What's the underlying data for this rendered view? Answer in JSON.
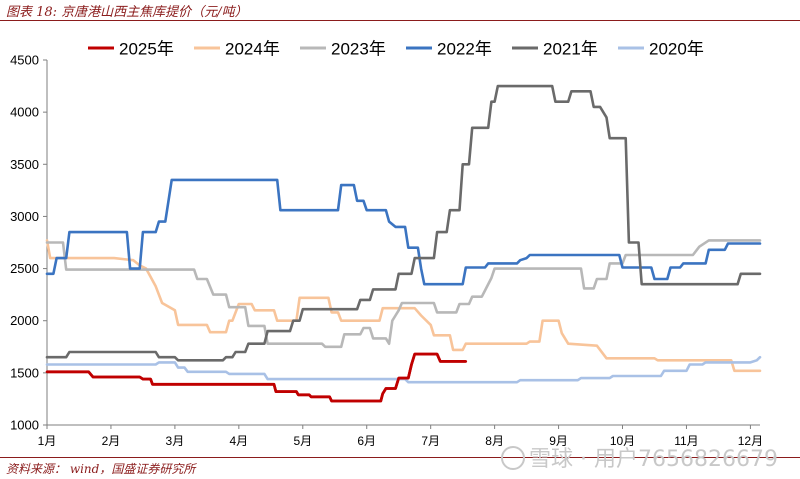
{
  "figure": {
    "title": "图表 18:  京唐港山西主焦库提价（元/吨）",
    "source": "资料来源：  wind，国盛证券研究所"
  },
  "watermark": {
    "text": "雪球 · 用户7656826679",
    "icon": "snowball-logo-icon"
  },
  "colors": {
    "2025年": "#c00000",
    "2024年": "#f8c49a",
    "2023年": "#b8b8b8",
    "2022年": "#3b74c1",
    "2021年": "#6a6a6a",
    "2020年": "#a9c1e6"
  },
  "chart_data": {
    "type": "line",
    "title": "",
    "xlabel": "",
    "ylabel": "",
    "x_unit": "month (1 = Jan 1, 13 = Dec 31)",
    "x_ticks": [
      1,
      2,
      3,
      4,
      5,
      6,
      7,
      8,
      9,
      10,
      11,
      12
    ],
    "x_tick_labels": [
      "1月",
      "2月",
      "3月",
      "4月",
      "5月",
      "6月",
      "7月",
      "8月",
      "9月",
      "10月",
      "11月",
      "12月"
    ],
    "xlim": [
      1,
      12.15
    ],
    "ylim": [
      1000,
      4500
    ],
    "y_ticks": [
      1000,
      1500,
      2000,
      2500,
      3000,
      3500,
      4000,
      4500
    ],
    "legend_position": "top",
    "grid": false,
    "series": [
      {
        "name": "2025年",
        "points": [
          [
            1,
            1510
          ],
          [
            1.65,
            1510
          ],
          [
            1.72,
            1460
          ],
          [
            2.45,
            1460
          ],
          [
            2.5,
            1440
          ],
          [
            2.62,
            1440
          ],
          [
            2.65,
            1390
          ],
          [
            4.55,
            1390
          ],
          [
            4.58,
            1320
          ],
          [
            4.9,
            1320
          ],
          [
            4.93,
            1290
          ],
          [
            5.1,
            1290
          ],
          [
            5.13,
            1270
          ],
          [
            5.42,
            1270
          ],
          [
            5.45,
            1230
          ],
          [
            6.22,
            1230
          ],
          [
            6.25,
            1300
          ],
          [
            6.3,
            1350
          ],
          [
            6.45,
            1350
          ],
          [
            6.5,
            1450
          ],
          [
            6.65,
            1450
          ],
          [
            6.7,
            1580
          ],
          [
            6.75,
            1680
          ],
          [
            7.1,
            1680
          ],
          [
            7.15,
            1610
          ],
          [
            7.55,
            1610
          ]
        ]
      },
      {
        "name": "2024年",
        "points": [
          [
            1,
            2770
          ],
          [
            1.05,
            2600
          ],
          [
            2.05,
            2600
          ],
          [
            2.35,
            2580
          ],
          [
            2.45,
            2530
          ],
          [
            2.55,
            2500
          ],
          [
            2.7,
            2330
          ],
          [
            2.8,
            2170
          ],
          [
            3.0,
            2100
          ],
          [
            3.05,
            1960
          ],
          [
            3.5,
            1960
          ],
          [
            3.55,
            1890
          ],
          [
            3.8,
            1890
          ],
          [
            3.85,
            2000
          ],
          [
            3.9,
            2000
          ],
          [
            4.0,
            2160
          ],
          [
            4.2,
            2160
          ],
          [
            4.25,
            2100
          ],
          [
            4.55,
            2100
          ],
          [
            4.6,
            2000
          ],
          [
            4.9,
            2000
          ],
          [
            4.95,
            2220
          ],
          [
            5.4,
            2220
          ],
          [
            5.45,
            2080
          ],
          [
            5.55,
            2080
          ],
          [
            5.6,
            2000
          ],
          [
            6.2,
            2000
          ],
          [
            6.25,
            2120
          ],
          [
            6.75,
            2120
          ],
          [
            6.85,
            2050
          ],
          [
            7.0,
            1960
          ],
          [
            7.05,
            1860
          ],
          [
            7.3,
            1860
          ],
          [
            7.35,
            1720
          ],
          [
            7.5,
            1720
          ],
          [
            7.55,
            1780
          ],
          [
            8.5,
            1780
          ],
          [
            8.55,
            1800
          ],
          [
            8.7,
            1800
          ],
          [
            8.75,
            2000
          ],
          [
            9.0,
            2000
          ],
          [
            9.05,
            1880
          ],
          [
            9.15,
            1780
          ],
          [
            9.6,
            1760
          ],
          [
            9.75,
            1640
          ],
          [
            10.5,
            1640
          ],
          [
            10.55,
            1620
          ],
          [
            11.7,
            1620
          ],
          [
            11.75,
            1520
          ],
          [
            12.15,
            1520
          ]
        ]
      },
      {
        "name": "2023年",
        "points": [
          [
            1,
            2750
          ],
          [
            1.25,
            2750
          ],
          [
            1.3,
            2490
          ],
          [
            3.3,
            2490
          ],
          [
            3.35,
            2400
          ],
          [
            3.5,
            2400
          ],
          [
            3.6,
            2250
          ],
          [
            3.8,
            2250
          ],
          [
            3.85,
            2130
          ],
          [
            4.1,
            2130
          ],
          [
            4.15,
            1950
          ],
          [
            4.4,
            1950
          ],
          [
            4.45,
            1780
          ],
          [
            5.3,
            1780
          ],
          [
            5.35,
            1750
          ],
          [
            5.6,
            1750
          ],
          [
            5.65,
            1870
          ],
          [
            5.9,
            1870
          ],
          [
            5.95,
            1930
          ],
          [
            6.05,
            1930
          ],
          [
            6.1,
            1830
          ],
          [
            6.3,
            1830
          ],
          [
            6.35,
            1780
          ],
          [
            6.4,
            2000
          ],
          [
            6.45,
            2050
          ],
          [
            6.5,
            2100
          ],
          [
            6.55,
            2170
          ],
          [
            7.05,
            2170
          ],
          [
            7.1,
            2080
          ],
          [
            7.4,
            2080
          ],
          [
            7.45,
            2160
          ],
          [
            7.6,
            2160
          ],
          [
            7.65,
            2230
          ],
          [
            7.8,
            2230
          ],
          [
            7.85,
            2290
          ],
          [
            7.95,
            2410
          ],
          [
            8.0,
            2500
          ],
          [
            9.35,
            2500
          ],
          [
            9.4,
            2310
          ],
          [
            9.55,
            2310
          ],
          [
            9.6,
            2400
          ],
          [
            9.75,
            2400
          ],
          [
            9.8,
            2550
          ],
          [
            10.0,
            2550
          ],
          [
            10.05,
            2630
          ],
          [
            11.1,
            2630
          ],
          [
            11.2,
            2710
          ],
          [
            11.35,
            2770
          ],
          [
            12.15,
            2770
          ]
        ]
      },
      {
        "name": "2022年",
        "points": [
          [
            1,
            2450
          ],
          [
            1.1,
            2450
          ],
          [
            1.15,
            2600
          ],
          [
            1.3,
            2600
          ],
          [
            1.35,
            2850
          ],
          [
            2.25,
            2850
          ],
          [
            2.3,
            2500
          ],
          [
            2.45,
            2500
          ],
          [
            2.5,
            2850
          ],
          [
            2.7,
            2850
          ],
          [
            2.75,
            2950
          ],
          [
            2.85,
            2950
          ],
          [
            2.9,
            3150
          ],
          [
            2.95,
            3350
          ],
          [
            4.6,
            3350
          ],
          [
            4.65,
            3060
          ],
          [
            5.55,
            3060
          ],
          [
            5.6,
            3300
          ],
          [
            5.8,
            3300
          ],
          [
            5.85,
            3150
          ],
          [
            5.95,
            3150
          ],
          [
            6.0,
            3060
          ],
          [
            6.3,
            3060
          ],
          [
            6.35,
            2950
          ],
          [
            6.45,
            2900
          ],
          [
            6.6,
            2900
          ],
          [
            6.65,
            2700
          ],
          [
            6.8,
            2700
          ],
          [
            6.85,
            2500
          ],
          [
            6.9,
            2350
          ],
          [
            7.5,
            2350
          ],
          [
            7.55,
            2510
          ],
          [
            7.85,
            2510
          ],
          [
            7.9,
            2550
          ],
          [
            8.35,
            2550
          ],
          [
            8.4,
            2580
          ],
          [
            8.5,
            2600
          ],
          [
            8.55,
            2630
          ],
          [
            9.95,
            2630
          ],
          [
            10.0,
            2510
          ],
          [
            10.45,
            2510
          ],
          [
            10.5,
            2400
          ],
          [
            10.7,
            2400
          ],
          [
            10.75,
            2510
          ],
          [
            10.9,
            2510
          ],
          [
            10.95,
            2550
          ],
          [
            11.3,
            2550
          ],
          [
            11.35,
            2680
          ],
          [
            11.6,
            2680
          ],
          [
            11.65,
            2740
          ],
          [
            12.15,
            2740
          ]
        ]
      },
      {
        "name": "2021年",
        "points": [
          [
            1,
            1650
          ],
          [
            1.3,
            1650
          ],
          [
            1.35,
            1700
          ],
          [
            2.7,
            1700
          ],
          [
            2.75,
            1650
          ],
          [
            3.0,
            1650
          ],
          [
            3.05,
            1620
          ],
          [
            3.75,
            1620
          ],
          [
            3.8,
            1650
          ],
          [
            3.9,
            1650
          ],
          [
            3.95,
            1700
          ],
          [
            4.1,
            1700
          ],
          [
            4.15,
            1780
          ],
          [
            4.4,
            1780
          ],
          [
            4.45,
            1900
          ],
          [
            4.8,
            1900
          ],
          [
            4.85,
            2000
          ],
          [
            4.95,
            2000
          ],
          [
            5.0,
            2110
          ],
          [
            5.85,
            2110
          ],
          [
            5.9,
            2200
          ],
          [
            6.05,
            2200
          ],
          [
            6.1,
            2300
          ],
          [
            6.45,
            2300
          ],
          [
            6.5,
            2450
          ],
          [
            6.7,
            2450
          ],
          [
            6.75,
            2600
          ],
          [
            7.05,
            2600
          ],
          [
            7.1,
            2850
          ],
          [
            7.25,
            2850
          ],
          [
            7.3,
            3060
          ],
          [
            7.45,
            3060
          ],
          [
            7.5,
            3500
          ],
          [
            7.6,
            3500
          ],
          [
            7.65,
            3850
          ],
          [
            7.9,
            3850
          ],
          [
            7.95,
            4100
          ],
          [
            8.0,
            4100
          ],
          [
            8.05,
            4250
          ],
          [
            8.9,
            4250
          ],
          [
            8.95,
            4100
          ],
          [
            9.15,
            4100
          ],
          [
            9.2,
            4200
          ],
          [
            9.5,
            4200
          ],
          [
            9.55,
            4050
          ],
          [
            9.65,
            4050
          ],
          [
            9.75,
            3950
          ],
          [
            9.8,
            3750
          ],
          [
            10.05,
            3750
          ],
          [
            10.1,
            2750
          ],
          [
            10.25,
            2750
          ],
          [
            10.3,
            2350
          ],
          [
            11.8,
            2350
          ],
          [
            11.85,
            2450
          ],
          [
            12.15,
            2450
          ]
        ]
      },
      {
        "name": "2020年",
        "points": [
          [
            1,
            1580
          ],
          [
            2.7,
            1580
          ],
          [
            2.75,
            1600
          ],
          [
            3.0,
            1600
          ],
          [
            3.05,
            1550
          ],
          [
            3.15,
            1550
          ],
          [
            3.2,
            1510
          ],
          [
            3.8,
            1510
          ],
          [
            3.85,
            1490
          ],
          [
            4.4,
            1490
          ],
          [
            4.45,
            1440
          ],
          [
            6.6,
            1440
          ],
          [
            6.65,
            1410
          ],
          [
            8.35,
            1410
          ],
          [
            8.4,
            1430
          ],
          [
            9.3,
            1430
          ],
          [
            9.35,
            1450
          ],
          [
            9.8,
            1450
          ],
          [
            9.85,
            1470
          ],
          [
            10.6,
            1470
          ],
          [
            10.65,
            1520
          ],
          [
            11.0,
            1520
          ],
          [
            11.05,
            1580
          ],
          [
            11.25,
            1580
          ],
          [
            11.3,
            1600
          ],
          [
            12.0,
            1600
          ],
          [
            12.1,
            1620
          ],
          [
            12.15,
            1650
          ]
        ]
      }
    ]
  }
}
